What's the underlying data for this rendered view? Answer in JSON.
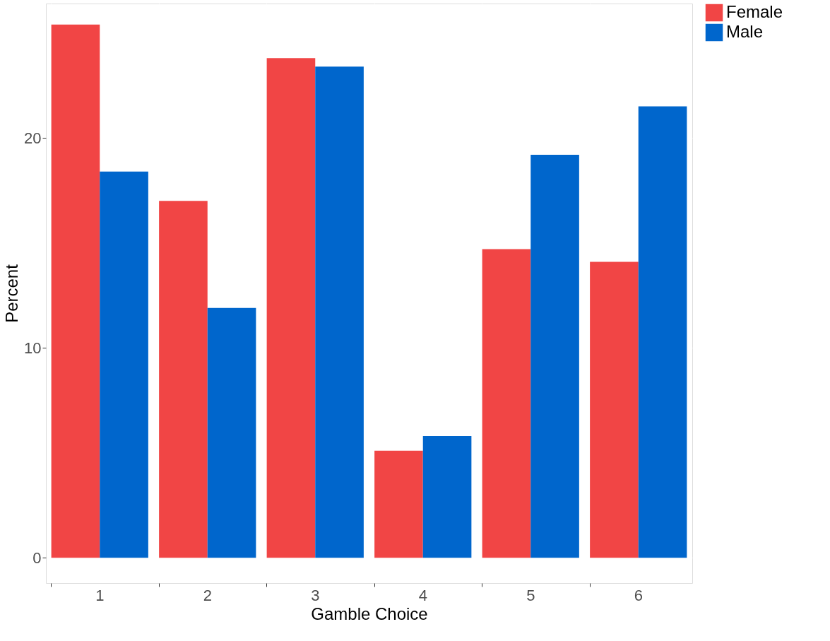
{
  "chart_data": {
    "type": "bar",
    "xlabel": "Gamble Choice",
    "ylabel": "Percent",
    "categories": [
      "1",
      "2",
      "3",
      "4",
      "5",
      "6"
    ],
    "series": [
      {
        "name": "Female",
        "color": "#f14545",
        "values": [
          25.4,
          17.0,
          23.8,
          5.1,
          14.7,
          14.1
        ]
      },
      {
        "name": "Male",
        "color": "#0066cc",
        "values": [
          18.4,
          11.9,
          23.4,
          5.8,
          19.2,
          21.5
        ]
      }
    ],
    "ylim": [
      -1.2,
      26.4
    ],
    "yticks": [
      0,
      10,
      20
    ],
    "grid": true,
    "legend": "right"
  }
}
